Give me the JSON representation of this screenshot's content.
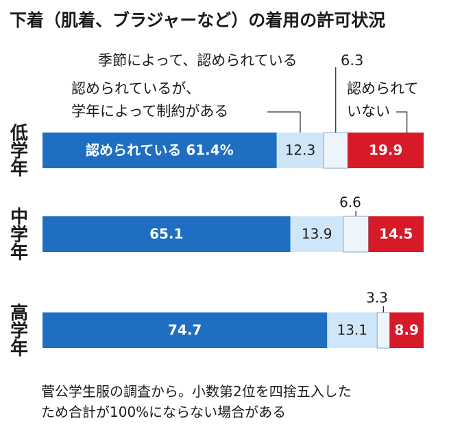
{
  "title": "下着（肌着、ブラジャーなど）の着用の許可状況",
  "note": {
    "line1": "菅公学生服の調査から。小数第2位を四捨五入した",
    "line2": "ため合計が100%にならない場合がある"
  },
  "chart_data": {
    "type": "bar",
    "orientation": "horizontal-stacked",
    "unit": "%",
    "xlim": [
      0,
      100
    ],
    "categories": [
      "低学年",
      "中学年",
      "高学年"
    ],
    "series": [
      {
        "name": "認められている",
        "color": "#1f6ec1",
        "values": [
          61.4,
          65.1,
          74.7
        ]
      },
      {
        "name": "認められているが、学年によって制約がある",
        "color": "#cfe6f8",
        "values": [
          12.3,
          13.9,
          13.1
        ]
      },
      {
        "name": "",
        "color": "#eef4fb",
        "values": [
          6.3,
          6.6,
          3.3
        ]
      },
      {
        "name": "認められていない",
        "color": "#d71a28",
        "values": [
          19.9,
          14.5,
          8.9
        ]
      }
    ],
    "value_labels": [
      [
        "認められている 61.4%",
        "12.3",
        "6.3",
        "19.9"
      ],
      [
        "65.1",
        "13.9",
        "6.6",
        "14.5"
      ],
      [
        "74.7",
        "13.1",
        "3.3",
        "8.9"
      ]
    ],
    "annotations": {
      "segment3": "季節によって、認められている",
      "segment2_line1": "認められているが、",
      "segment2_line2": "学年によって制約がある",
      "segment4_line1": "認められて",
      "segment4_line2": "いない"
    },
    "legend": "callouts-top"
  }
}
